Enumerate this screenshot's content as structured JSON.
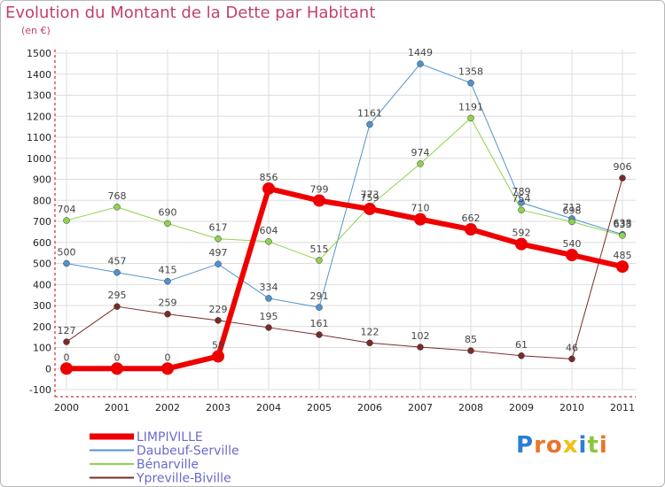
{
  "title": "Evolution du Montant de la Dette par Habitant",
  "unit": "(en €)",
  "logo": {
    "text": "Proxiti",
    "colors": [
      "#2b7fd4",
      "#e8752a",
      "#e8752a",
      "#f2c012",
      "#2b7fd4",
      "#8cc63f",
      "#e8752a"
    ]
  },
  "chart_data": {
    "type": "line",
    "title": "Evolution du Montant de la Dette par Habitant",
    "ylabel": "(en €)",
    "x": [
      "2000",
      "2001",
      "2002",
      "2003",
      "2004",
      "2005",
      "2006",
      "2007",
      "2008",
      "2009",
      "2010",
      "2011"
    ],
    "ylim": [
      -100,
      1500
    ],
    "yticks": [
      -100,
      0,
      100,
      200,
      300,
      400,
      500,
      600,
      700,
      800,
      900,
      1000,
      1100,
      1200,
      1300,
      1400,
      1500
    ],
    "grid": true,
    "legend_position": "bottom-left",
    "series": [
      {
        "name": "Daubeuf-Serville",
        "color": "#4f93cf",
        "width": 1,
        "values": [
          500,
          457,
          415,
          497,
          334,
          291,
          1161,
          1449,
          1358,
          789,
          713,
          638
        ],
        "labels": [
          "500",
          "457",
          "415",
          "497",
          "334",
          "291",
          "1161",
          "1449",
          "1358",
          "789",
          "713",
          "638"
        ]
      },
      {
        "name": "Bénarville",
        "color": "#8fd24c",
        "width": 1,
        "values": [
          704,
          768,
          690,
          617,
          604,
          515,
          773,
          974,
          1191,
          754,
          698,
          633
        ],
        "labels": [
          "704",
          "768",
          "690",
          "617",
          "604",
          "515",
          "773",
          "974",
          "1191",
          "754",
          "698",
          "633"
        ]
      },
      {
        "name": "Ypreville-Biville",
        "color": "#7b2a2a",
        "width": 1,
        "values": [
          127,
          295,
          259,
          229,
          195,
          161,
          122,
          102,
          85,
          61,
          46,
          906
        ],
        "labels": [
          "127",
          "295",
          "259",
          "229",
          "195",
          "161",
          "122",
          "102",
          "85",
          "61",
          "46",
          "906"
        ]
      },
      {
        "name": "LIMPIVILLE",
        "color": "#ee0000",
        "width": 6,
        "values": [
          0,
          0,
          0,
          58,
          856,
          799,
          759,
          710,
          662,
          592,
          540,
          485
        ],
        "labels": [
          "0",
          "0",
          "0",
          "58",
          "856",
          "799",
          "759",
          "710",
          "662",
          "592",
          "540",
          "485"
        ]
      }
    ],
    "legend_order": [
      "LIMPIVILLE",
      "Daubeuf-Serville",
      "Bénarville",
      "Ypreville-Biville"
    ]
  }
}
